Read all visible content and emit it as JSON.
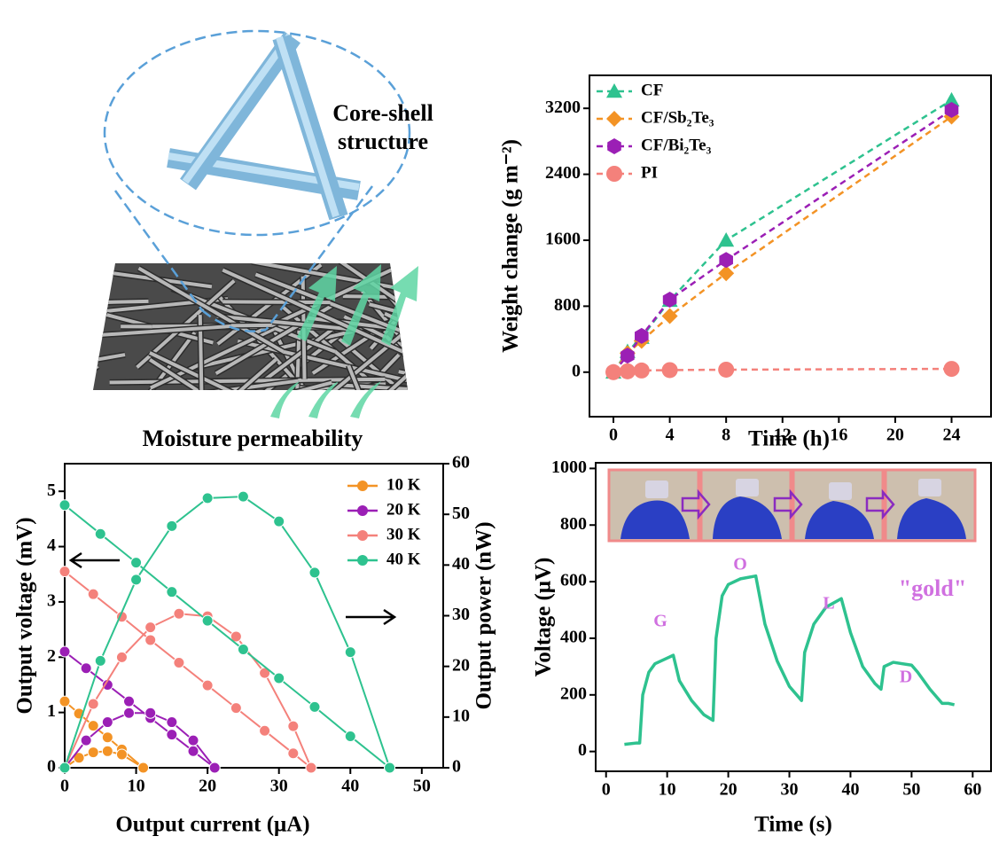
{
  "illustration": {
    "label_lines": [
      "Core-shell",
      "structure"
    ],
    "caption": "Moisture permeability"
  },
  "chart_data": [
    {
      "type": "line",
      "xlabel": "Time (h)",
      "ylabel": "Weight change (g m⁻²)",
      "xlim": [
        -1.7,
        26.8
      ],
      "ylim": [
        -540,
        3600
      ],
      "xticks": [
        0,
        4,
        8,
        12,
        16,
        20,
        24
      ],
      "yticks": [
        0,
        800,
        1600,
        2400,
        3200
      ],
      "legend": "upper left",
      "line_style": "dashed",
      "series": [
        {
          "name": "CF",
          "color": "#2ec28f",
          "marker": "triangle",
          "x": [
            0,
            1,
            2,
            4,
            8,
            24
          ],
          "values": [
            0,
            250,
            420,
            870,
            1600,
            3300
          ]
        },
        {
          "name": "CF/Sb₂Te₃",
          "color": "#f39325",
          "marker": "diamond",
          "x": [
            0,
            1,
            2,
            4,
            8,
            24
          ],
          "values": [
            0,
            230,
            380,
            680,
            1200,
            3100
          ]
        },
        {
          "name": "CF/Bi₂Te₃",
          "color": "#9b1fb5",
          "marker": "hexagon",
          "x": [
            0,
            1,
            2,
            4,
            8,
            24
          ],
          "values": [
            0,
            200,
            440,
            880,
            1360,
            3180
          ]
        },
        {
          "name": "PI",
          "color": "#f4817b",
          "marker": "circle",
          "x": [
            0,
            1,
            2,
            4,
            8,
            24
          ],
          "values": [
            0,
            10,
            20,
            25,
            30,
            40
          ]
        }
      ]
    },
    {
      "type": "dual_line",
      "xlabel": "Output current (μA)",
      "ylabel": "Output voltage (mV)",
      "y2label": "Output power (nW)",
      "xlim": [
        0,
        53
      ],
      "ylim": [
        0,
        5.5
      ],
      "y2lim": [
        0,
        60
      ],
      "xticks": [
        0,
        10,
        20,
        30,
        40,
        50
      ],
      "yticks": [
        0,
        1,
        2,
        3,
        4,
        5
      ],
      "y2ticks": [
        0,
        10,
        20,
        30,
        40,
        50,
        60
      ],
      "legend": "upper right",
      "series": [
        {
          "name": "10 K",
          "color": "#f39325",
          "x": [
            0,
            2,
            4,
            6,
            8,
            11
          ],
          "values": [
            1.2,
            0.98,
            0.76,
            0.55,
            0.33,
            0
          ],
          "power": [
            0,
            1.96,
            3.05,
            3.27,
            2.62,
            0
          ]
        },
        {
          "name": "20 K",
          "color": "#9b1fb5",
          "x": [
            0,
            3,
            6,
            9,
            12,
            15,
            18,
            21
          ],
          "values": [
            2.1,
            1.8,
            1.5,
            1.2,
            0.9,
            0.6,
            0.3,
            0
          ],
          "power": [
            0,
            5.4,
            9.0,
            10.8,
            10.8,
            9.0,
            5.4,
            0
          ]
        },
        {
          "name": "30 K",
          "color": "#f4817b",
          "x": [
            0,
            4,
            8,
            12,
            16,
            20,
            24,
            28,
            32,
            34.5
          ],
          "values": [
            3.55,
            3.14,
            2.73,
            2.31,
            1.9,
            1.49,
            1.08,
            0.67,
            0.26,
            0
          ],
          "power": [
            0,
            12.6,
            21.8,
            27.7,
            30.4,
            29.9,
            25.9,
            18.7,
            8.2,
            0
          ]
        },
        {
          "name": "40 K",
          "color": "#2ec28f",
          "x": [
            0,
            5,
            10,
            15,
            20,
            25,
            30,
            35,
            40,
            45.5
          ],
          "values": [
            4.75,
            4.23,
            3.71,
            3.18,
            2.66,
            2.14,
            1.62,
            1.1,
            0.57,
            0
          ],
          "power": [
            0,
            21.1,
            37.1,
            47.7,
            53.2,
            53.5,
            48.6,
            38.5,
            22.8,
            0
          ]
        }
      ]
    },
    {
      "type": "line",
      "xlabel": "Time (s)",
      "ylabel": "Voltage (μV)",
      "xlim": [
        -1.7,
        63
      ],
      "ylim": [
        -70,
        1020
      ],
      "xticks": [
        0,
        10,
        20,
        30,
        40,
        50,
        60
      ],
      "yticks": [
        0,
        200,
        400,
        600,
        800,
        1000
      ],
      "color": "#2ec28f",
      "x": [
        3,
        5,
        5.5,
        6,
        7,
        8,
        10,
        11,
        12,
        14,
        16,
        17.5,
        18,
        19,
        20,
        22,
        24.5,
        26,
        28,
        30,
        32,
        32.5,
        34,
        36,
        38.5,
        40,
        42,
        44,
        45,
        45.5,
        47,
        50,
        51,
        53,
        55,
        56,
        57
      ],
      "values": [
        25,
        30,
        30,
        200,
        280,
        310,
        330,
        340,
        250,
        180,
        130,
        110,
        400,
        550,
        590,
        610,
        620,
        450,
        320,
        230,
        180,
        350,
        450,
        510,
        540,
        420,
        300,
        240,
        220,
        300,
        315,
        305,
        280,
        220,
        170,
        170,
        165
      ],
      "annotations": [
        "G",
        "O",
        "L",
        "D",
        "\"gold\""
      ]
    }
  ]
}
